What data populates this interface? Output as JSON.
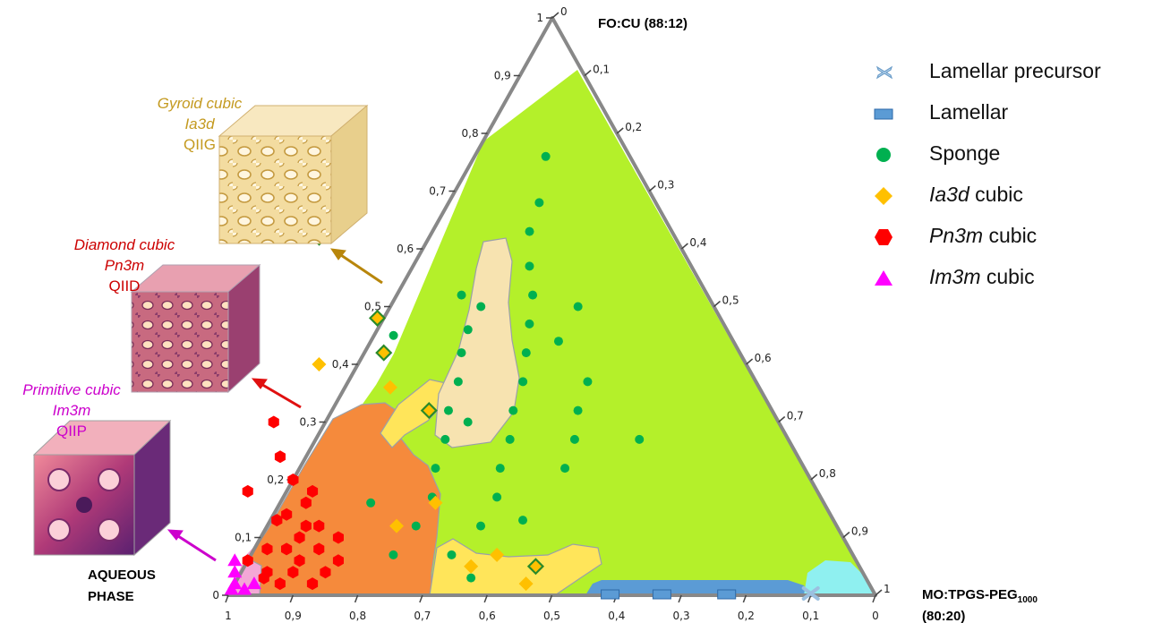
{
  "chart_data": {
    "type": "ternary-phase-diagram",
    "vertices": {
      "top": {
        "label": "FO:CU (88:12)"
      },
      "right": {
        "label_main": "MO:TPGS-PEG",
        "label_sub": "1000",
        "label_ratio": "(80:20)"
      },
      "left": {
        "label_line1": "AQUEOUS",
        "label_line2": "PHASE"
      }
    },
    "axis_ticks": {
      "left": [
        "0",
        "0,1",
        "0,2",
        "0,3",
        "0,4",
        "0,5",
        "0,6",
        "0,7",
        "0,8",
        "0,9",
        "1"
      ],
      "right": [
        "0",
        "0,1",
        "0,2",
        "0,3",
        "0,4",
        "0,5",
        "0,6",
        "0,7",
        "0,8",
        "0,9",
        "1"
      ],
      "bottom": [
        "1",
        "0,9",
        "0,8",
        "0,7",
        "0,6",
        "0,5",
        "0,4",
        "0,3",
        "0,2",
        "0,1",
        "0"
      ]
    },
    "legend": [
      {
        "label": "Lamellar precursor",
        "label_italic": "",
        "symbol": "cross",
        "color": "#a8c8e8"
      },
      {
        "label": "Lamellar",
        "label_italic": "",
        "symbol": "rectangle",
        "color": "#5b9bd5"
      },
      {
        "label": "Sponge",
        "label_italic": "",
        "symbol": "circle",
        "color": "#00b050"
      },
      {
        "label": " cubic",
        "label_italic": "Ia3d",
        "symbol": "diamond",
        "color": "#ffc000"
      },
      {
        "label": " cubic",
        "label_italic": "Pn3m",
        "symbol": "hexagon",
        "color": "#ff0000"
      },
      {
        "label": " cubic",
        "label_italic": "Im3m",
        "symbol": "triangle",
        "color": "#ff00ff"
      }
    ],
    "regions": [
      {
        "phase": "Sponge",
        "color": "#b4f02a"
      },
      {
        "phase": "Pn3m cubic",
        "color": "#f58a3c"
      },
      {
        "phase": "Ia3d cubic",
        "color": "#ffe55a"
      },
      {
        "phase": "Ia3d cubic (sponge inclusions)",
        "color": "#f7e3b0"
      },
      {
        "phase": "Im3m cubic",
        "color": "#f4a7d6"
      },
      {
        "phase": "Lamellar",
        "color": "#5b9bd5"
      },
      {
        "phase": "Lamellar precursor",
        "color": "#8ff0f0"
      }
    ],
    "points": {
      "sponge": [
        [
          0.71,
          0.07
        ],
        [
          0.62,
          0.07
        ],
        [
          0.65,
          0.12
        ],
        [
          0.55,
          0.12
        ],
        [
          0.6,
          0.17
        ],
        [
          0.5,
          0.17
        ],
        [
          0.57,
          0.22
        ],
        [
          0.47,
          0.22
        ],
        [
          0.37,
          0.22
        ],
        [
          0.53,
          0.27
        ],
        [
          0.43,
          0.27
        ],
        [
          0.33,
          0.27
        ],
        [
          0.23,
          0.27
        ],
        [
          0.5,
          0.32
        ],
        [
          0.4,
          0.32
        ],
        [
          0.3,
          0.32
        ],
        [
          0.46,
          0.37
        ],
        [
          0.36,
          0.37
        ],
        [
          0.26,
          0.37
        ],
        [
          0.43,
          0.42
        ],
        [
          0.33,
          0.42
        ],
        [
          0.52,
          0.45
        ],
        [
          0.3,
          0.47
        ],
        [
          0.38,
          0.52
        ],
        [
          0.27,
          0.52
        ],
        [
          0.25,
          0.57
        ],
        [
          0.22,
          0.63
        ],
        [
          0.18,
          0.68
        ],
        [
          0.13,
          0.76
        ],
        [
          0.48,
          0.13
        ],
        [
          0.61,
          0.03
        ],
        [
          0.7,
          0.16
        ],
        [
          0.48,
          0.3
        ],
        [
          0.4,
          0.46
        ],
        [
          0.21,
          0.5
        ],
        [
          0.27,
          0.44
        ],
        [
          0.36,
          0.5
        ]
      ],
      "ia3d": [
        [
          0.66,
          0.4
        ],
        [
          0.55,
          0.07
        ],
        [
          0.5,
          0.05
        ],
        [
          0.57,
          0.36
        ],
        [
          0.6,
          0.16
        ],
        [
          0.6,
          0.05
        ],
        [
          0.68,
          0.12
        ],
        [
          0.53,
          0.02
        ]
      ],
      "ia3d_inner": [
        [
          0.55,
          0.62
        ],
        [
          0.53,
          0.48
        ],
        [
          0.55,
          0.42
        ],
        [
          0.53,
          0.32
        ],
        [
          0.5,
          0.05
        ]
      ],
      "pn3m": [
        [
          0.78,
          0.3
        ],
        [
          0.8,
          0.24
        ],
        [
          0.8,
          0.2
        ],
        [
          0.78,
          0.18
        ],
        [
          0.88,
          0.18
        ],
        [
          0.8,
          0.16
        ],
        [
          0.84,
          0.14
        ],
        [
          0.8,
          0.12
        ],
        [
          0.86,
          0.13
        ],
        [
          0.82,
          0.12
        ],
        [
          0.84,
          0.1
        ],
        [
          0.78,
          0.1
        ],
        [
          0.87,
          0.08
        ],
        [
          0.82,
          0.08
        ],
        [
          0.86,
          0.06
        ],
        [
          0.8,
          0.06
        ],
        [
          0.88,
          0.04
        ],
        [
          0.83,
          0.04
        ],
        [
          0.91,
          0.02
        ],
        [
          0.86,
          0.02
        ],
        [
          0.92,
          0.04
        ],
        [
          0.94,
          0.06
        ],
        [
          0.9,
          0.08
        ],
        [
          0.93,
          0.03
        ]
      ],
      "im3m": [
        [
          0.96,
          0.06
        ],
        [
          0.97,
          0.04
        ],
        [
          0.98,
          0.02
        ],
        [
          0.95,
          0.02
        ],
        [
          0.97,
          0.01
        ],
        [
          0.99,
          0.01
        ]
      ],
      "lamellar": [
        [
          0.41,
          0.0
        ],
        [
          0.33,
          0.0
        ],
        [
          0.23,
          0.0
        ]
      ],
      "lamellar_precursor": [
        [
          0.1,
          0.0
        ]
      ]
    }
  },
  "structures": [
    {
      "name_italic": "Gyroid cubic",
      "group_italic": "Ia3d",
      "code": "QIIG",
      "color": "#c49a20"
    },
    {
      "name_italic": "Diamond cubic",
      "group_italic": "Pn3m",
      "code": "QIID",
      "color": "#cc0000"
    },
    {
      "name_italic": "Primitive cubic",
      "group_italic": "Im3m",
      "code": "QIIP",
      "color": "#cc00cc"
    }
  ]
}
